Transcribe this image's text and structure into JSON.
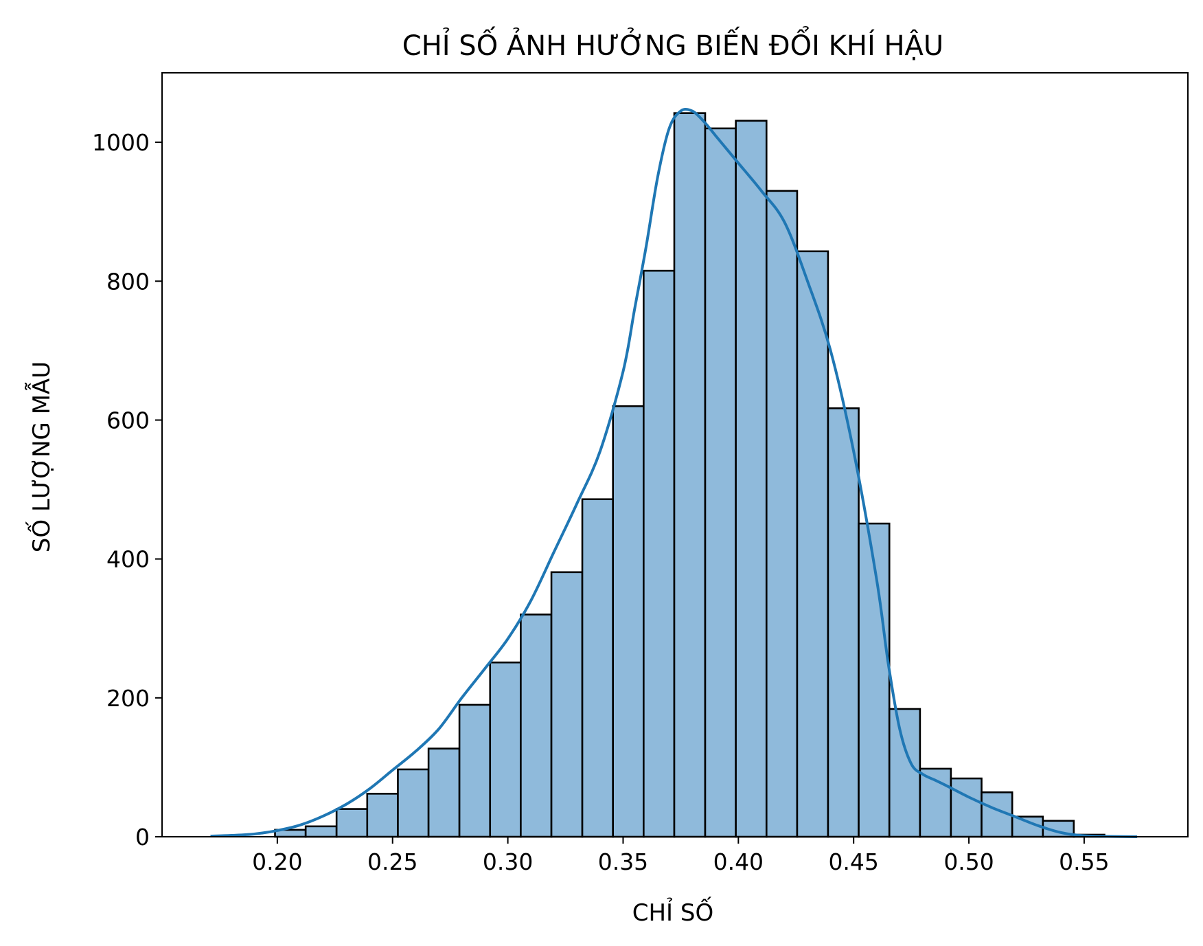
{
  "chart_data": {
    "type": "bar",
    "subtype": "histogram-with-kde",
    "title": "CHỈ SỐ ẢNH HƯỞNG BIẾN ĐỔI KHÍ HẬU",
    "xlabel": "CHỈ SỐ",
    "ylabel": "SỐ LƯỢNG MẪU",
    "xlim": [
      0.15,
      0.595
    ],
    "ylim": [
      0,
      1100
    ],
    "x_ticks": [
      0.2,
      0.25,
      0.3,
      0.35,
      0.4,
      0.45,
      0.5,
      0.55
    ],
    "x_tick_labels": [
      "0.20",
      "0.25",
      "0.30",
      "0.35",
      "0.40",
      "0.45",
      "0.50",
      "0.55"
    ],
    "y_ticks": [
      0,
      200,
      400,
      600,
      800,
      1000
    ],
    "y_tick_labels": [
      "0",
      "200",
      "400",
      "600",
      "800",
      "1000"
    ],
    "grid": false,
    "bar_color": "#8fbadb",
    "bar_edge_color": "#000000",
    "line_color": "#1f77b4",
    "bins": [
      {
        "x0": 0.199,
        "x1": 0.2123,
        "count": 10
      },
      {
        "x0": 0.2123,
        "x1": 0.2257,
        "count": 15
      },
      {
        "x0": 0.2257,
        "x1": 0.239,
        "count": 40
      },
      {
        "x0": 0.239,
        "x1": 0.2523,
        "count": 62
      },
      {
        "x0": 0.2523,
        "x1": 0.2656,
        "count": 97
      },
      {
        "x0": 0.2656,
        "x1": 0.279,
        "count": 127
      },
      {
        "x0": 0.279,
        "x1": 0.2923,
        "count": 190
      },
      {
        "x0": 0.2923,
        "x1": 0.3056,
        "count": 251
      },
      {
        "x0": 0.3056,
        "x1": 0.3189,
        "count": 320
      },
      {
        "x0": 0.3189,
        "x1": 0.3323,
        "count": 381
      },
      {
        "x0": 0.3323,
        "x1": 0.3456,
        "count": 486
      },
      {
        "x0": 0.3456,
        "x1": 0.3589,
        "count": 620
      },
      {
        "x0": 0.3589,
        "x1": 0.3722,
        "count": 815
      },
      {
        "x0": 0.3722,
        "x1": 0.3856,
        "count": 1042
      },
      {
        "x0": 0.3856,
        "x1": 0.3989,
        "count": 1020
      },
      {
        "x0": 0.3989,
        "x1": 0.4122,
        "count": 1031
      },
      {
        "x0": 0.4122,
        "x1": 0.4255,
        "count": 930
      },
      {
        "x0": 0.4255,
        "x1": 0.4389,
        "count": 843
      },
      {
        "x0": 0.4389,
        "x1": 0.4522,
        "count": 617
      },
      {
        "x0": 0.4522,
        "x1": 0.4655,
        "count": 451
      },
      {
        "x0": 0.4655,
        "x1": 0.4788,
        "count": 184
      },
      {
        "x0": 0.4788,
        "x1": 0.4922,
        "count": 98
      },
      {
        "x0": 0.4922,
        "x1": 0.5055,
        "count": 84
      },
      {
        "x0": 0.5055,
        "x1": 0.5188,
        "count": 64
      },
      {
        "x0": 0.5188,
        "x1": 0.5321,
        "count": 29
      },
      {
        "x0": 0.5321,
        "x1": 0.5455,
        "count": 23
      },
      {
        "x0": 0.5455,
        "x1": 0.5588,
        "count": 3
      }
    ],
    "kde": {
      "x": [
        0.171,
        0.18,
        0.19,
        0.2,
        0.21,
        0.22,
        0.23,
        0.24,
        0.25,
        0.26,
        0.27,
        0.28,
        0.29,
        0.3,
        0.31,
        0.32,
        0.33,
        0.34,
        0.35,
        0.355,
        0.36,
        0.365,
        0.37,
        0.375,
        0.38,
        0.385,
        0.39,
        0.395,
        0.4,
        0.41,
        0.42,
        0.43,
        0.44,
        0.45,
        0.46,
        0.465,
        0.47,
        0.475,
        0.48,
        0.485,
        0.49,
        0.5,
        0.51,
        0.52,
        0.53,
        0.54,
        0.55,
        0.56,
        0.573
      ],
      "y": [
        1,
        2,
        4,
        9,
        17,
        30,
        47,
        69,
        96,
        123,
        155,
        200,
        242,
        285,
        340,
        410,
        480,
        555,
        670,
        760,
        850,
        950,
        1020,
        1045,
        1045,
        1030,
        1010,
        990,
        970,
        930,
        885,
        800,
        700,
        555,
        370,
        250,
        155,
        105,
        90,
        82,
        74,
        57,
        42,
        29,
        16,
        6,
        1.5,
        0.5,
        0
      ]
    }
  }
}
